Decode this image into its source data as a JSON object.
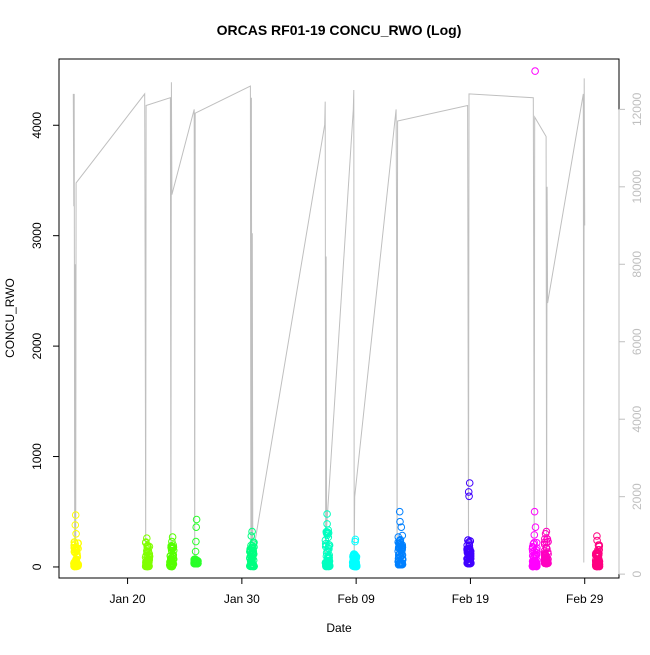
{
  "chart_data": {
    "type": "scatter",
    "title": "ORCAS RF01-19 CONCU_RWO (Log)",
    "xlabel": "Date",
    "ylabel": "CONCU_RWO",
    "xlim": [
      "2016-01-14",
      "2016-03-03"
    ],
    "ylim": [
      -100,
      4600
    ],
    "y2lim": [
      -100,
      13300
    ],
    "x_ticks": [
      {
        "date": "2016-01-20",
        "label": "Jan 20"
      },
      {
        "date": "2016-01-30",
        "label": "Jan 30"
      },
      {
        "date": "2016-02-09",
        "label": "Feb 09"
      },
      {
        "date": "2016-02-19",
        "label": "Feb 19"
      },
      {
        "date": "2016-02-29",
        "label": "Feb 29"
      }
    ],
    "y_ticks": [
      "0",
      "1000",
      "2000",
      "3000",
      "4000"
    ],
    "y2_ticks": [
      "0",
      "2000",
      "4000",
      "6000",
      "8000",
      "10000",
      "12000"
    ],
    "colors": {
      "altitude_line": "#bfbfbf",
      "axis": "#000000",
      "right_axis": "#bfbfbf"
    },
    "series": [
      {
        "color": "#FFFF00",
        "date": "2016-01-15T12:00",
        "width": 0.4,
        "lo": 5,
        "hi": 230,
        "extra": [
          300,
          380,
          470
        ]
      },
      {
        "color": "#80FF00",
        "date": "2016-01-21T18:00",
        "width": 0.35,
        "lo": 5,
        "hi": 240,
        "extra": [
          260
        ]
      },
      {
        "color": "#55FF00",
        "date": "2016-01-23T21:00",
        "width": 0.35,
        "lo": 5,
        "hi": 200,
        "extra": [
          230,
          270
        ]
      },
      {
        "color": "#2AFF2A",
        "date": "2016-01-26T00:00",
        "width": 0.35,
        "lo": 30,
        "hi": 70,
        "extra": [
          140,
          230,
          360,
          430
        ]
      },
      {
        "color": "#00FF80",
        "date": "2016-01-30T21:00",
        "width": 0.4,
        "lo": 5,
        "hi": 230,
        "extra": [
          280,
          320
        ]
      },
      {
        "color": "#00FFC0",
        "date": "2016-02-06T12:00",
        "width": 0.4,
        "lo": 5,
        "hi": 360,
        "extra": [
          390,
          480
        ]
      },
      {
        "color": "#00FFFF",
        "date": "2016-02-08T21:00",
        "width": 0.35,
        "lo": 5,
        "hi": 120,
        "extra": [
          230,
          250
        ]
      },
      {
        "color": "#0080FF",
        "date": "2016-02-12T21:00",
        "width": 0.4,
        "lo": 20,
        "hi": 310,
        "extra": [
          360,
          410,
          500
        ]
      },
      {
        "color": "#4000FF",
        "date": "2016-02-18T21:00",
        "width": 0.35,
        "lo": 30,
        "hi": 250,
        "extra": [
          640,
          680,
          760
        ]
      },
      {
        "color": "#FF00FF",
        "date": "2016-02-24T15:00",
        "width": 0.4,
        "lo": 5,
        "hi": 240,
        "extra": [
          290,
          360,
          500,
          4490
        ]
      },
      {
        "color": "#FF00C0",
        "date": "2016-02-25T15:00",
        "width": 0.35,
        "lo": 30,
        "hi": 260,
        "extra": [
          300,
          320
        ]
      },
      {
        "color": "#FF0080",
        "date": "2016-03-01T03:00",
        "width": 0.35,
        "lo": 5,
        "hi": 210,
        "extra": [
          240,
          280
        ]
      }
    ],
    "altitude_path": [
      [
        "2016-01-15T06:00",
        12400
      ],
      [
        "2016-01-15T07:00",
        9500
      ],
      [
        "2016-01-15T08:00",
        12400
      ],
      [
        "2016-01-15T09:00",
        500
      ],
      [
        "2016-01-15T10:00",
        8000
      ],
      [
        "2016-01-15T11:00",
        400
      ],
      [
        "2016-01-15T12:00",
        10100
      ],
      [
        "2016-01-21T12:00",
        12400
      ],
      [
        "2016-01-21T13:00",
        7200
      ],
      [
        "2016-01-21T14:00",
        300
      ],
      [
        "2016-01-21T15:00",
        12100
      ],
      [
        "2016-01-23T18:00",
        12300
      ],
      [
        "2016-01-23T19:00",
        400
      ],
      [
        "2016-01-23T20:00",
        12700
      ],
      [
        "2016-01-23T21:00",
        9800
      ],
      [
        "2016-01-25T20:00",
        12000
      ],
      [
        "2016-01-25T21:00",
        300
      ],
      [
        "2016-01-25T22:00",
        11900
      ],
      [
        "2016-01-30T18:00",
        12600
      ],
      [
        "2016-01-30T19:00",
        400
      ],
      [
        "2016-01-30T20:00",
        12300
      ],
      [
        "2016-01-30T21:00",
        800
      ],
      [
        "2016-01-30T22:00",
        8800
      ],
      [
        "2016-01-30T23:00",
        500
      ],
      [
        "2016-02-06T06:00",
        11600
      ],
      [
        "2016-02-06T07:00",
        12200
      ],
      [
        "2016-02-06T08:00",
        400
      ],
      [
        "2016-02-06T09:00",
        8200
      ],
      [
        "2016-02-06T10:00",
        1200
      ],
      [
        "2016-02-08T18:00",
        12000
      ],
      [
        "2016-02-08T19:00",
        12500
      ],
      [
        "2016-02-08T20:00",
        400
      ],
      [
        "2016-02-08T21:00",
        2000
      ],
      [
        "2016-02-12T12:00",
        12000
      ],
      [
        "2016-02-12T13:00",
        9000
      ],
      [
        "2016-02-12T14:00",
        300
      ],
      [
        "2016-02-12T15:00",
        11700
      ],
      [
        "2016-02-18T18:00",
        12100
      ],
      [
        "2016-02-18T19:00",
        7300
      ],
      [
        "2016-02-18T20:00",
        300
      ],
      [
        "2016-02-18T21:00",
        12400
      ],
      [
        "2016-02-24T12:00",
        12300
      ],
      [
        "2016-02-24T13:00",
        7000
      ],
      [
        "2016-02-24T14:00",
        300
      ],
      [
        "2016-02-24T15:00",
        11800
      ],
      [
        "2016-02-25T15:00",
        11300
      ],
      [
        "2016-02-25T16:00",
        400
      ],
      [
        "2016-02-25T17:00",
        10000
      ],
      [
        "2016-02-25T18:00",
        7000
      ],
      [
        "2016-02-28T21:00",
        12400
      ],
      [
        "2016-02-28T22:00",
        300
      ],
      [
        "2016-02-28T23:00",
        12800
      ],
      [
        "2016-02-29T00:00",
        9000
      ]
    ]
  }
}
